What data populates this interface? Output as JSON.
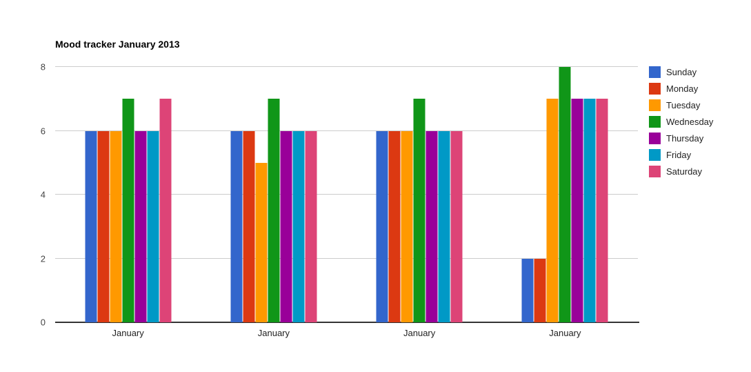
{
  "chart_data": {
    "type": "bar",
    "title": "Mood tracker January 2013",
    "categories": [
      "January",
      "January",
      "January",
      "January"
    ],
    "series": [
      {
        "name": "Sunday",
        "color": "#3366CC",
        "values": [
          6,
          6,
          6,
          2
        ]
      },
      {
        "name": "Monday",
        "color": "#DC3912",
        "values": [
          6,
          6,
          6,
          2
        ]
      },
      {
        "name": "Tuesday",
        "color": "#FF9900",
        "values": [
          6,
          5,
          6,
          7
        ]
      },
      {
        "name": "Wednesday",
        "color": "#109618",
        "values": [
          7,
          7,
          7,
          8
        ]
      },
      {
        "name": "Thursday",
        "color": "#990099",
        "values": [
          6,
          6,
          6,
          7
        ]
      },
      {
        "name": "Friday",
        "color": "#0099C6",
        "values": [
          6,
          6,
          6,
          7
        ]
      },
      {
        "name": "Saturday",
        "color": "#DD4477",
        "values": [
          7,
          6,
          6,
          7
        ]
      }
    ],
    "xlabel": "",
    "ylabel": "",
    "ylim": [
      0,
      8
    ],
    "yticks": [
      0,
      2,
      4,
      6,
      8
    ],
    "grid": true,
    "legend_position": "right",
    "gridline_color": "#cccccc",
    "baseline_color": "#333333"
  }
}
